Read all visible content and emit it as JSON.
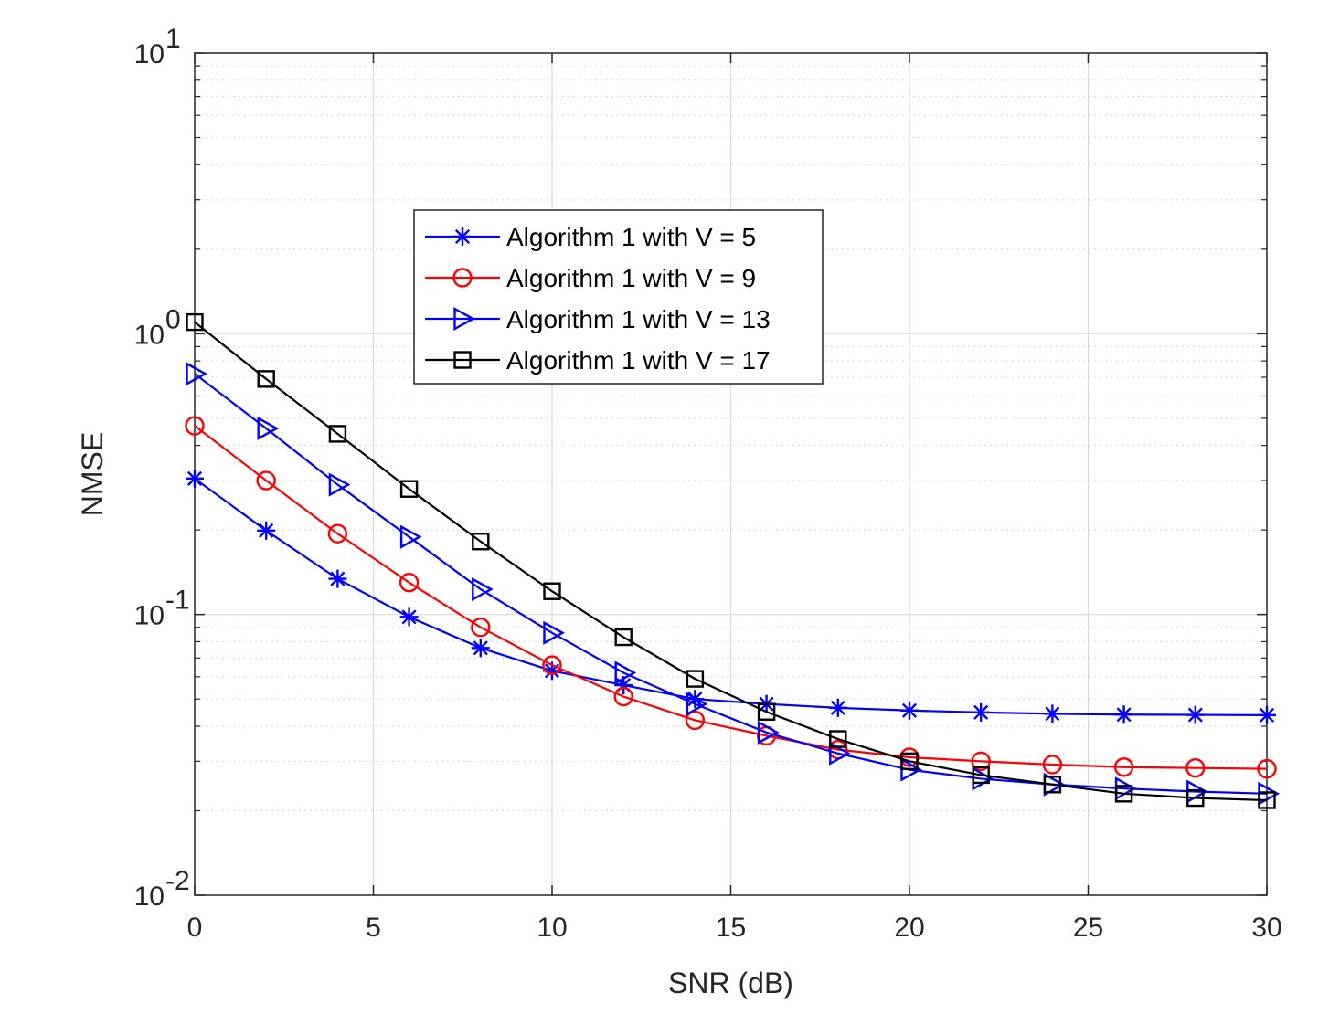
{
  "chart_data": {
    "type": "line",
    "title": "",
    "xlabel": "SNR (dB)",
    "ylabel": "NMSE",
    "xscale": "linear",
    "yscale": "log",
    "xlim": [
      0,
      30
    ],
    "ylim": [
      0.01,
      10
    ],
    "grid": true,
    "legend_position": "upper-left-center",
    "x_ticks": [
      0,
      5,
      10,
      15,
      20,
      25,
      30
    ],
    "x_tick_labels": [
      "0",
      "5",
      "10",
      "15",
      "20",
      "25",
      "30"
    ],
    "y_ticks": [
      {
        "value": 10,
        "base": "10",
        "exponent": "1"
      },
      {
        "value": 1,
        "base": "10",
        "exponent": "0"
      },
      {
        "value": 0.1,
        "base": "10",
        "exponent": "-1"
      },
      {
        "value": 0.01,
        "base": "10",
        "exponent": "-2"
      }
    ],
    "x": [
      0,
      2,
      4,
      6,
      8,
      10,
      12,
      14,
      16,
      18,
      20,
      22,
      24,
      26,
      28,
      30
    ],
    "series": [
      {
        "name": "Algorithm 1 with V = 5",
        "color": "#0000ff",
        "marker": "asterisk",
        "values": [
          0.305,
          0.199,
          0.134,
          0.098,
          0.076,
          0.063,
          0.056,
          0.05,
          0.048,
          0.0465,
          0.0455,
          0.0448,
          0.0443,
          0.044,
          0.0439,
          0.0438
        ]
      },
      {
        "name": "Algorithm 1 with V = 9",
        "color": "#ff0000",
        "marker": "circle",
        "values": [
          0.47,
          0.3,
          0.194,
          0.13,
          0.09,
          0.066,
          0.051,
          0.042,
          0.037,
          0.033,
          0.031,
          0.03,
          0.0292,
          0.0286,
          0.0284,
          0.0282
        ]
      },
      {
        "name": "Algorithm 1 with V = 13",
        "color": "#0000ff",
        "marker": "triangle-right",
        "values": [
          0.72,
          0.46,
          0.29,
          0.189,
          0.123,
          0.086,
          0.062,
          0.048,
          0.038,
          0.032,
          0.028,
          0.026,
          0.0248,
          0.024,
          0.0234,
          0.023
        ]
      },
      {
        "name": "Algorithm 1 with V = 17",
        "color": "#000000",
        "marker": "square",
        "values": [
          1.1,
          0.69,
          0.44,
          0.28,
          0.182,
          0.121,
          0.083,
          0.059,
          0.045,
          0.036,
          0.03,
          0.0268,
          0.0248,
          0.023,
          0.0222,
          0.0218
        ]
      }
    ]
  }
}
